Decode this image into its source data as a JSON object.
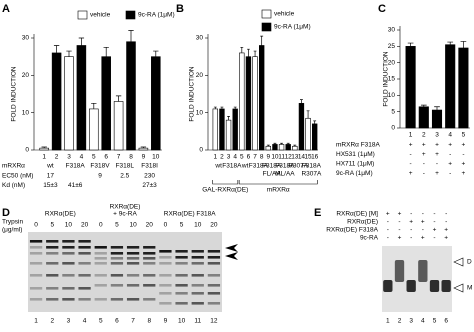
{
  "chart_data": [
    {
      "type": "bar",
      "panel": "A",
      "y_label": "FOLD INDUCTION",
      "ylim": [
        0,
        30
      ],
      "yticks": [
        0,
        10,
        20,
        30
      ],
      "series": [
        {
          "name": "vehicle",
          "color": "#ffffff",
          "values": [
            0.5,
            25,
            11,
            13,
            0.5
          ],
          "errors": [
            0.3,
            1.5,
            1.5,
            1.5,
            0.3
          ]
        },
        {
          "name": "9c-RA (1μM)",
          "color": "#000000",
          "values": [
            26,
            28,
            25,
            29,
            25
          ],
          "errors": [
            2,
            2,
            2.5,
            3,
            1.5
          ]
        }
      ],
      "lanes": [
        1,
        2,
        3,
        4,
        5,
        6,
        7,
        8,
        9,
        10
      ],
      "group_title": "mRXRα",
      "categories": [
        [
          "wt"
        ],
        [
          "F318A"
        ],
        [
          "F318V"
        ],
        [
          "F318L"
        ],
        [
          "F318I"
        ]
      ],
      "rows": [
        {
          "label": "EC50 (nM)",
          "cells": [
            17,
            null,
            9,
            2.5,
            230
          ]
        },
        {
          "label": "Kd (nM)",
          "cells": [
            "15±3",
            "41±6",
            null,
            null,
            "27±3"
          ]
        }
      ]
    },
    {
      "type": "bar",
      "panel": "B",
      "y_label": "FOLD INDUCTION",
      "ylim": [
        0,
        30
      ],
      "yticks": [
        0,
        10,
        20,
        30
      ],
      "series": [
        {
          "name": "vehicle",
          "color": "#ffffff",
          "values": [
            11,
            8,
            26,
            25,
            1,
            1.5,
            1,
            8.5
          ],
          "errors": [
            0.5,
            1,
            1.5,
            1.5,
            0.3,
            0.3,
            0.3,
            2
          ]
        },
        {
          "name": "9c-RA (1μM)",
          "color": "#000000",
          "values": [
            11,
            11,
            25,
            28,
            1.5,
            1.5,
            12.5,
            7
          ],
          "errors": [
            0.5,
            0.5,
            2,
            2.5,
            0.3,
            0.3,
            1,
            0.8
          ]
        }
      ],
      "lanes": [
        1,
        2,
        3,
        4,
        5,
        6,
        7,
        8,
        9,
        10,
        11,
        12,
        13,
        14,
        15,
        16
      ],
      "categories": [
        [
          "wt"
        ],
        [
          "F318A"
        ],
        [
          "wt"
        ],
        [
          "F318A"
        ],
        [
          "F318A",
          "FL/AA"
        ],
        [
          "F318A",
          "ML/AA"
        ],
        [
          "R307A"
        ],
        [
          "F318A",
          "R307A"
        ]
      ],
      "group_labels": [
        "GAL-RXRα(DE)",
        "mRXRα"
      ]
    },
    {
      "type": "bar",
      "panel": "C",
      "y_label": "FOLD INDUCTION",
      "ylim": [
        0,
        30
      ],
      "yticks": [
        0,
        5,
        10,
        15,
        20,
        25,
        30
      ],
      "series": [
        {
          "color": "#000000",
          "values": [
            25,
            6.5,
            5.5,
            25.5,
            24.5
          ],
          "errors": [
            1,
            0.5,
            1,
            0.8,
            2
          ]
        }
      ],
      "lanes": [
        1,
        2,
        3,
        4,
        5
      ],
      "rows": [
        {
          "label": "mRXRα F318A",
          "cells": [
            "+",
            "+",
            "+",
            "+",
            "+"
          ]
        },
        {
          "label": "HX531 (1μM)",
          "cells": [
            "-",
            "+",
            "+",
            "-",
            "-"
          ]
        },
        {
          "label": "HX711 (1μM)",
          "cells": [
            "-",
            "-",
            "-",
            "+",
            "+"
          ]
        },
        {
          "label": "9c-RA (1μM)",
          "cells": [
            "+",
            "-",
            "+",
            "-",
            "+"
          ]
        }
      ]
    }
  ],
  "gels": {
    "D": {
      "panel": "D",
      "trypsin_label": [
        "Trypsin",
        "(μg/ml)"
      ],
      "groups": [
        [
          "RXRα(DE)"
        ],
        [
          "RXRα(DE)",
          "+ 9c-RA"
        ],
        [
          "RXRα(DE) F318A"
        ]
      ],
      "concentrations": [
        0,
        5,
        10,
        20,
        0,
        5,
        10,
        20,
        0,
        5,
        10,
        20
      ],
      "lanes": [
        1,
        2,
        3,
        4,
        5,
        6,
        7,
        8,
        9,
        10,
        11,
        12
      ]
    },
    "E": {
      "panel": "E",
      "rows": [
        {
          "label": "RXRα(DE) [M]",
          "cells": [
            "+",
            "+",
            "-",
            "-",
            "-",
            "-"
          ]
        },
        {
          "label": "RXRα(DE)",
          "cells": [
            "-",
            "-",
            "+",
            "+",
            "-",
            "-"
          ]
        },
        {
          "label": "RXRα(DE) F318A",
          "cells": [
            "-",
            "-",
            "-",
            "-",
            "+",
            "+"
          ]
        },
        {
          "label": "9c-RA",
          "cells": [
            "-",
            "+",
            "-",
            "+",
            "-",
            "+"
          ]
        }
      ],
      "bands": [
        "D",
        "M"
      ],
      "lanes": [
        1,
        2,
        3,
        4,
        5,
        6
      ]
    }
  }
}
